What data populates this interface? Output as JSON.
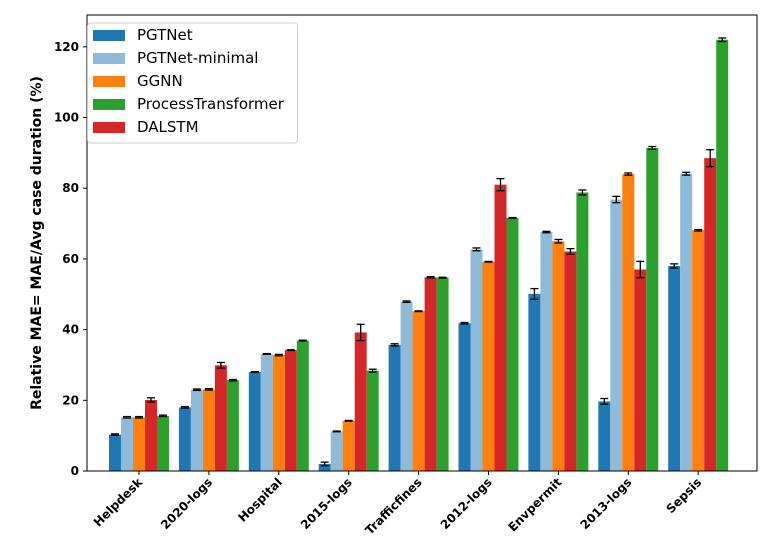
{
  "chart_data": {
    "type": "bar",
    "title": "",
    "xlabel": "",
    "ylabel": "Relative MAE= MAE/Avg case duration (%)",
    "ylim": [
      0,
      129
    ],
    "yticks": [
      0,
      20,
      40,
      60,
      80,
      100,
      120
    ],
    "grid": false,
    "legend_placement": "top-left",
    "categories": [
      "Helpdesk",
      "2020-logs",
      "Hospital",
      "2015-logs",
      "Trafficfines",
      "2012-logs",
      "Envpermit",
      "2013-logs",
      "Sepsis"
    ],
    "bar_order": [
      "PGTNet",
      "PGTNet-minimal",
      "GGNN",
      "DALSTM",
      "ProcessTransformer"
    ],
    "series": [
      {
        "name": "PGTNet",
        "color": "#1f77b4",
        "values": [
          10.3,
          18.0,
          28.0,
          2.0,
          35.7,
          41.8,
          50.1,
          19.7,
          58.0
        ],
        "errors": [
          0.2,
          0.2,
          0.1,
          0.5,
          0.3,
          0.2,
          1.5,
          0.8,
          0.6
        ]
      },
      {
        "name": "PGTNet-minimal",
        "color": "#8fbbda",
        "values": [
          15.2,
          23.0,
          33.1,
          11.2,
          47.9,
          62.7,
          67.6,
          76.8,
          84.1
        ],
        "errors": [
          0.2,
          0.2,
          0.1,
          0.1,
          0.2,
          0.4,
          0.2,
          0.9,
          0.4
        ]
      },
      {
        "name": "GGNN",
        "color": "#ff7f0e",
        "values": [
          15.2,
          23.1,
          32.8,
          14.2,
          45.2,
          59.2,
          65.0,
          84.0,
          68.1
        ],
        "errors": [
          0.2,
          0.2,
          0.2,
          0.1,
          0.1,
          0.1,
          0.5,
          0.3,
          0.2
        ]
      },
      {
        "name": "ProcessTransformer",
        "color": "#2ca02c",
        "values": [
          15.6,
          25.7,
          36.9,
          28.4,
          54.7,
          71.6,
          78.8,
          91.4,
          122.0
        ],
        "errors": [
          0.2,
          0.2,
          0.1,
          0.4,
          0.1,
          0.1,
          0.7,
          0.4,
          0.5
        ]
      },
      {
        "name": "DALSTM",
        "color": "#d62728",
        "values": [
          20.1,
          29.9,
          34.2,
          39.2,
          54.8,
          81.0,
          62.1,
          57.0,
          88.5
        ],
        "errors": [
          0.6,
          0.8,
          0.1,
          2.3,
          0.2,
          1.7,
          0.8,
          2.3,
          2.4
        ]
      }
    ]
  }
}
